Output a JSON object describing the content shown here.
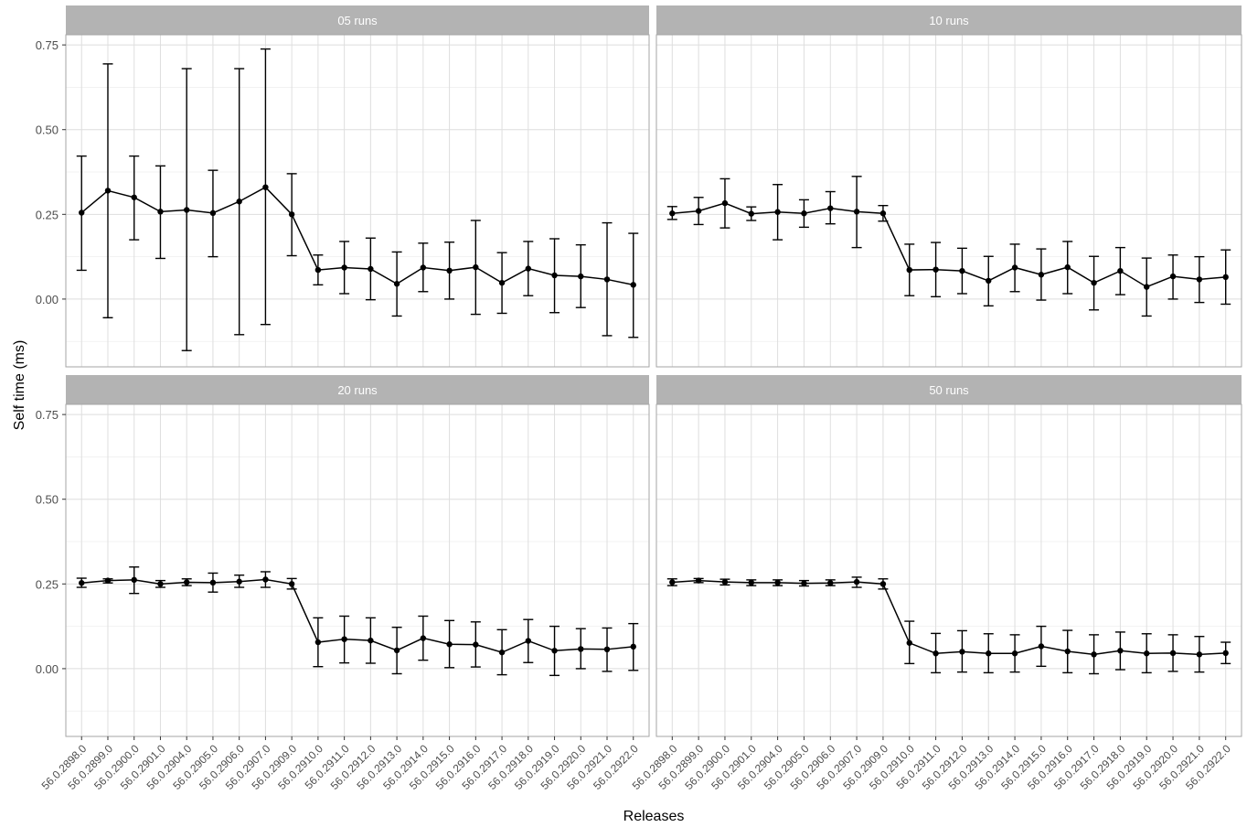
{
  "chart_data": {
    "type": "line",
    "subtype": "faceted line with points and error bars",
    "xlabel": "Releases",
    "ylabel": "Self time (ms)",
    "ylim": [
      -0.2,
      0.78
    ],
    "yticks": [
      0.0,
      0.25,
      0.5,
      0.75
    ],
    "ytick_labels": [
      "0.00",
      "0.25",
      "0.50",
      "0.75"
    ],
    "grid": true,
    "categories": [
      "56.0.2898.0",
      "56.0.2899.0",
      "56.0.2900.0",
      "56.0.2901.0",
      "56.0.2904.0",
      "56.0.2905.0",
      "56.0.2906.0",
      "56.0.2907.0",
      "56.0.2909.0",
      "56.0.2910.0",
      "56.0.2911.0",
      "56.0.2912.0",
      "56.0.2913.0",
      "56.0.2914.0",
      "56.0.2915.0",
      "56.0.2916.0",
      "56.0.2917.0",
      "56.0.2918.0",
      "56.0.2919.0",
      "56.0.2920.0",
      "56.0.2921.0",
      "56.0.2922.0"
    ],
    "panels": [
      {
        "title": "05 runs",
        "values": [
          0.255,
          0.32,
          0.3,
          0.258,
          0.263,
          0.254,
          0.288,
          0.33,
          0.25,
          0.086,
          0.093,
          0.089,
          0.045,
          0.093,
          0.084,
          0.094,
          0.048,
          0.09,
          0.07,
          0.067,
          0.058,
          0.042
        ],
        "err_low": [
          0.085,
          -0.055,
          0.175,
          0.12,
          -0.152,
          0.125,
          -0.105,
          -0.075,
          0.128,
          0.042,
          0.016,
          -0.002,
          -0.05,
          0.022,
          0.0,
          -0.045,
          -0.042,
          0.01,
          -0.04,
          -0.025,
          -0.108,
          -0.113
        ],
        "err_high": [
          0.422,
          0.694,
          0.422,
          0.393,
          0.68,
          0.38,
          0.68,
          0.738,
          0.37,
          0.13,
          0.17,
          0.18,
          0.139,
          0.165,
          0.168,
          0.232,
          0.137,
          0.17,
          0.178,
          0.16,
          0.225,
          0.194
        ]
      },
      {
        "title": "10 runs",
        "values": [
          0.253,
          0.26,
          0.283,
          0.252,
          0.257,
          0.253,
          0.268,
          0.258,
          0.253,
          0.086,
          0.087,
          0.083,
          0.054,
          0.093,
          0.072,
          0.094,
          0.048,
          0.083,
          0.036,
          0.067,
          0.058,
          0.065
        ],
        "err_low": [
          0.235,
          0.22,
          0.21,
          0.232,
          0.175,
          0.212,
          0.222,
          0.152,
          0.23,
          0.01,
          0.007,
          0.016,
          -0.02,
          0.022,
          -0.003,
          0.016,
          -0.032,
          0.013,
          -0.05,
          0.0,
          -0.01,
          -0.015
        ],
        "err_high": [
          0.273,
          0.3,
          0.355,
          0.272,
          0.338,
          0.293,
          0.317,
          0.362,
          0.276,
          0.162,
          0.167,
          0.15,
          0.126,
          0.162,
          0.148,
          0.17,
          0.126,
          0.152,
          0.121,
          0.13,
          0.125,
          0.145
        ]
      },
      {
        "title": "20 runs",
        "values": [
          0.253,
          0.26,
          0.262,
          0.25,
          0.255,
          0.254,
          0.257,
          0.263,
          0.25,
          0.078,
          0.087,
          0.083,
          0.054,
          0.09,
          0.072,
          0.071,
          0.048,
          0.082,
          0.053,
          0.058,
          0.057,
          0.065
        ],
        "err_low": [
          0.24,
          0.253,
          0.222,
          0.24,
          0.245,
          0.226,
          0.24,
          0.24,
          0.235,
          0.006,
          0.017,
          0.016,
          -0.015,
          0.025,
          0.003,
          0.005,
          -0.018,
          0.018,
          -0.02,
          0.0,
          -0.008,
          -0.005
        ],
        "err_high": [
          0.267,
          0.265,
          0.3,
          0.26,
          0.265,
          0.282,
          0.276,
          0.286,
          0.266,
          0.15,
          0.155,
          0.15,
          0.122,
          0.155,
          0.142,
          0.138,
          0.115,
          0.145,
          0.125,
          0.118,
          0.12,
          0.133
        ]
      },
      {
        "title": "50 runs",
        "values": [
          0.255,
          0.26,
          0.256,
          0.254,
          0.254,
          0.252,
          0.253,
          0.256,
          0.25,
          0.076,
          0.045,
          0.05,
          0.045,
          0.045,
          0.066,
          0.051,
          0.042,
          0.053,
          0.045,
          0.046,
          0.042,
          0.046
        ],
        "err_low": [
          0.245,
          0.254,
          0.247,
          0.245,
          0.245,
          0.244,
          0.245,
          0.24,
          0.235,
          0.015,
          -0.012,
          -0.01,
          -0.012,
          -0.01,
          0.007,
          -0.012,
          -0.015,
          -0.003,
          -0.012,
          -0.008,
          -0.01,
          0.015
        ],
        "err_high": [
          0.265,
          0.266,
          0.264,
          0.262,
          0.262,
          0.26,
          0.262,
          0.27,
          0.265,
          0.14,
          0.104,
          0.112,
          0.103,
          0.1,
          0.125,
          0.113,
          0.1,
          0.108,
          0.103,
          0.1,
          0.095,
          0.078
        ]
      }
    ],
    "colors": {
      "line": "#000000",
      "strip_bg": "#b3b3b3",
      "strip_text": "#ffffff",
      "grid_major": "#dedede",
      "grid_minor": "#efefef",
      "panel_border": "#a6a6a6",
      "tick_text": "#4d4d4d"
    }
  }
}
